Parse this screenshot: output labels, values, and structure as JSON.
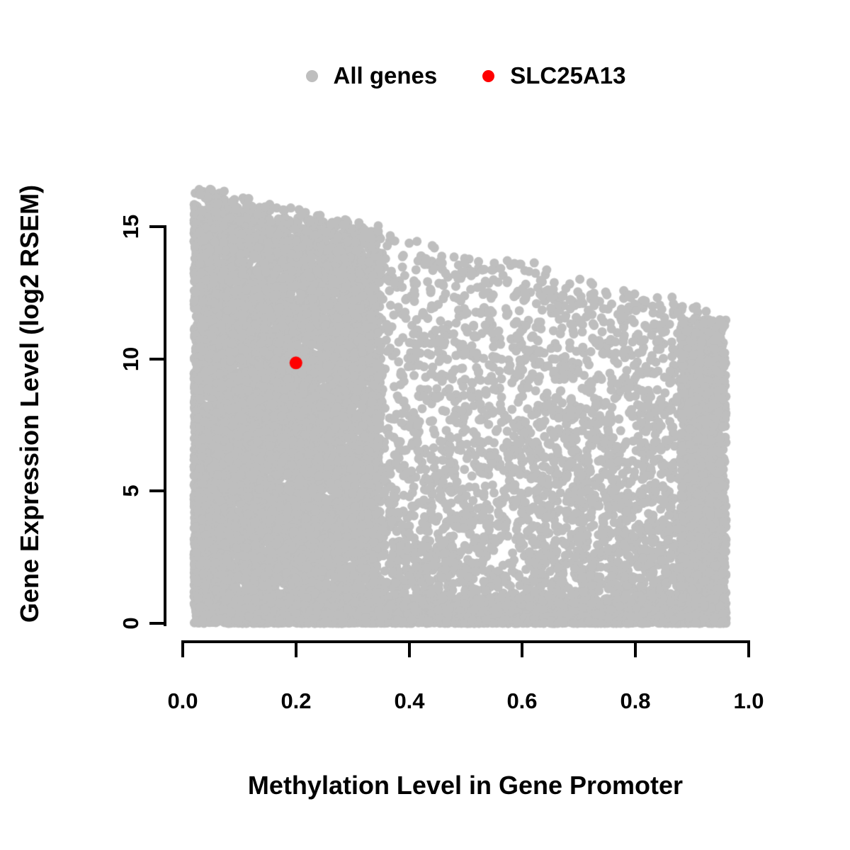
{
  "chart_data": {
    "type": "scatter",
    "title": "",
    "xlabel": "Methylation Level in Gene Promoter",
    "ylabel": "Gene Expression Level (log2 RSEM)",
    "xlim": [
      0.0,
      1.0
    ],
    "ylim": [
      0,
      17
    ],
    "grid": false,
    "legend_position": "top-center",
    "x_ticks": [
      "0.0",
      "0.2",
      "0.4",
      "0.6",
      "0.8",
      "1.0"
    ],
    "x_tick_values": [
      0.0,
      0.2,
      0.4,
      0.6,
      0.8,
      1.0
    ],
    "y_ticks": [
      "0",
      "5",
      "10",
      "15"
    ],
    "y_tick_values": [
      0,
      5,
      10,
      15
    ],
    "legend": [
      {
        "label": "All genes",
        "color": "#BEBEBE"
      },
      {
        "label": "SLC25A13",
        "color": "#FF0000"
      }
    ],
    "highlight_point": {
      "name": "SLC25A13",
      "x": 0.2,
      "y": 9.85,
      "color": "#FF0000",
      "radius_px": 9
    },
    "cloud": {
      "name": "All genes",
      "color": "#BEBEBE",
      "n_points": 15000,
      "seed": 42,
      "x_range": [
        0.02,
        0.96
      ],
      "y_envelope_at_x0": 16.6,
      "y_envelope_at_x1": 11.9,
      "radius_px": 6.5,
      "note": "Dense gray cloud of all genes; point density is highest at low promoter methylation (x < 0.35) spanning expression 0-16.5; the upper envelope of expression declines as methylation increases; a dense band of near-zero expression spans all methylation levels; a vertical strip of points sits near x = 0.9-0.96 up to expression ~11.5"
    }
  }
}
